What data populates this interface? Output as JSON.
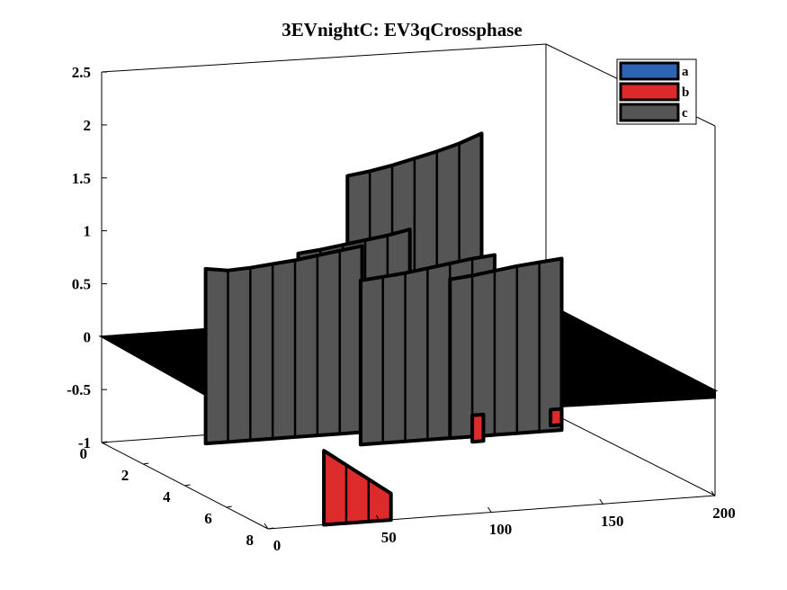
{
  "chart_data": {
    "type": "area",
    "title": "3EVnightC: EV3qCrossphase",
    "xlabel": "",
    "ylabel": "",
    "zlabel": "",
    "xlim": [
      0,
      200
    ],
    "ylim": [
      0,
      8
    ],
    "zlim": [
      -1,
      2.5
    ],
    "x_ticks": [
      "0",
      "50",
      "100",
      "150",
      "200"
    ],
    "y_ticks": [
      "0",
      "2",
      "4",
      "6",
      "8"
    ],
    "z_ticks": [
      "-1",
      "-0.5",
      "0",
      "0.5",
      "1",
      "1.5",
      "2",
      "2.5"
    ],
    "legend_position": "top-right",
    "grid": false,
    "series": [
      {
        "name": "a",
        "color": "#2e64b4"
      },
      {
        "name": "b",
        "color": "#dd2a2a"
      },
      {
        "name": "c",
        "color": "#555555"
      }
    ],
    "panels": [
      {
        "series": "c",
        "x": [
          0,
          10,
          20,
          30,
          40,
          50,
          60,
          70
        ],
        "y": 5,
        "top": [
          1.15,
          1.12,
          1.13,
          1.15,
          1.17,
          1.2,
          1.23,
          1.26
        ],
        "bottom": -0.5
      },
      {
        "series": "c",
        "x": [
          60,
          70,
          80,
          90,
          100,
          110
        ],
        "y": 3,
        "top": [
          1.0,
          1.02,
          1.05,
          1.08,
          1.11,
          1.15
        ],
        "bottom": -0.5
      },
      {
        "series": "c",
        "x": [
          110,
          120,
          130,
          140,
          150,
          160,
          170
        ],
        "y": 0,
        "top": [
          1.35,
          1.38,
          1.42,
          1.47,
          1.52,
          1.58,
          1.66
        ],
        "bottom": 0
      },
      {
        "series": "c",
        "x": [
          60,
          70,
          80,
          90,
          100,
          110,
          120
        ],
        "y": 6,
        "top": [
          1.05,
          1.07,
          1.09,
          1.12,
          1.15,
          1.18,
          1.2
        ],
        "bottom": -0.5
      },
      {
        "series": "c",
        "x": [
          100,
          110,
          120,
          130,
          140,
          150
        ],
        "y": 6,
        "top": [
          1.0,
          1.02,
          1.05,
          1.08,
          1.1,
          1.12
        ],
        "bottom": -0.5
      },
      {
        "series": "b",
        "x": [
          25,
          35,
          45,
          55
        ],
        "y": 8,
        "top": [
          -0.3,
          -0.45,
          -0.6,
          -0.75
        ],
        "bottom": -1.0
      },
      {
        "series": "b",
        "x": [
          110,
          115
        ],
        "y": 6,
        "top": [
          -0.3,
          -0.3
        ],
        "bottom": -0.55
      },
      {
        "series": "b",
        "x": [
          145,
          150
        ],
        "y": 6,
        "top": [
          -0.3,
          -0.3
        ],
        "bottom": -0.45
      }
    ]
  }
}
